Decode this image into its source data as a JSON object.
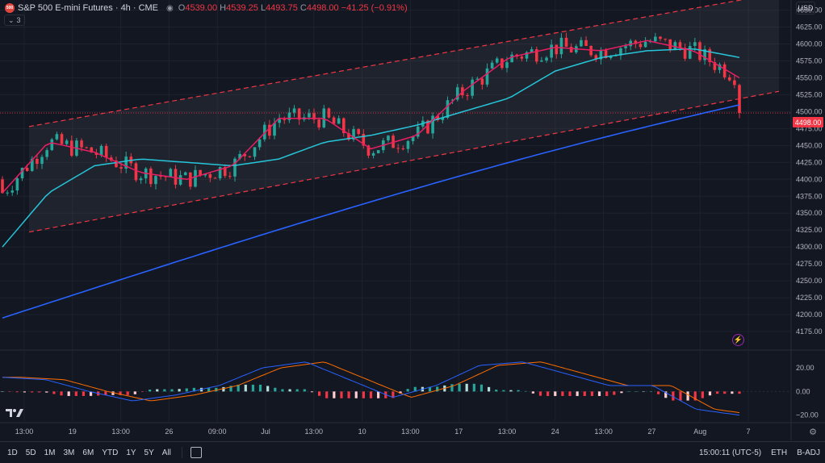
{
  "header": {
    "logo_text": "500",
    "symbol": "S&P 500 E-mini Futures · 4h · CME",
    "open_label": "O",
    "open": "4539.00",
    "high_label": "H",
    "high": "4539.25",
    "low_label": "L",
    "low": "4493.75",
    "close_label": "C",
    "close": "4498.00",
    "change": "−41.25 (−0.91%)",
    "indicator_count": "3",
    "currency": "USD"
  },
  "price_scale": {
    "ticks": [
      4650,
      4625,
      4600,
      4575,
      4550,
      4525,
      4500,
      4475,
      4450,
      4425,
      4400,
      4375,
      4350,
      4325,
      4300,
      4275,
      4250,
      4225,
      4200,
      4175
    ],
    "tick_labels": [
      "4650.00",
      "4625.00",
      "4600.00",
      "4575.00",
      "4550.00",
      "4525.00",
      "4500.00",
      "4475.00",
      "4450.00",
      "4425.00",
      "4400.00",
      "4375.00",
      "4350.00",
      "4325.00",
      "4300.00",
      "4275.00",
      "4250.00",
      "4225.00",
      "4200.00",
      "4175.00"
    ],
    "last_price": "4498.00"
  },
  "macd_scale": {
    "ticks": [
      20,
      0,
      -20
    ],
    "tick_labels": [
      "20.00",
      "0.00",
      "−20.00"
    ]
  },
  "time_axis": {
    "labels": [
      "13:00",
      "19",
      "13:00",
      "26",
      "09:00",
      "Jul",
      "13:00",
      "10",
      "13:00",
      "17",
      "13:00",
      "24",
      "13:00",
      "27",
      "Aug",
      "7"
    ]
  },
  "bottom_bar": {
    "periods": [
      "1D",
      "5D",
      "1M",
      "3M",
      "6M",
      "YTD",
      "1Y",
      "5Y",
      "All"
    ],
    "clock": "15:00:11 (UTC-5)",
    "eth": "ETH",
    "badj": "B-ADJ"
  },
  "colors": {
    "up": "#26a69a",
    "down": "#f23645",
    "ema_fast": "#e91e63",
    "ema_mid": "#26c6da",
    "ema_slow": "#2962ff",
    "channel": "#f23645",
    "macd": "#2962ff",
    "signal": "#ff6d00",
    "background": "#131722",
    "grid": "#1e222d"
  },
  "chart_data": {
    "type": "candlestick",
    "price_range": [
      4150,
      4665
    ],
    "ema_slow_approx": {
      "start": 4195,
      "end": 4510
    },
    "ema_mid_approx_points": [
      4300,
      4380,
      4420,
      4430,
      4425,
      4420,
      4430,
      4455,
      4465,
      4480,
      4500,
      4520,
      4560,
      4580,
      4590,
      4593,
      4580
    ],
    "ema_fast_approx_points": [
      4380,
      4455,
      4440,
      4410,
      4400,
      4420,
      4490,
      4490,
      4445,
      4465,
      4530,
      4580,
      4595,
      4590,
      4605,
      4590,
      4550
    ],
    "regression_channel": {
      "upper": {
        "start": 4478,
        "end": 4675
      },
      "lower": {
        "start": 4322,
        "end": 4530
      },
      "middle": {
        "start": 4400,
        "end": 4600
      }
    },
    "macd": {
      "range": [
        -25,
        35
      ],
      "macd_points": [
        12,
        10,
        0,
        -8,
        -3,
        5,
        20,
        25,
        10,
        -5,
        5,
        22,
        25,
        15,
        5,
        5,
        -15,
        -20
      ]
    },
    "last_close": 4498.0
  }
}
